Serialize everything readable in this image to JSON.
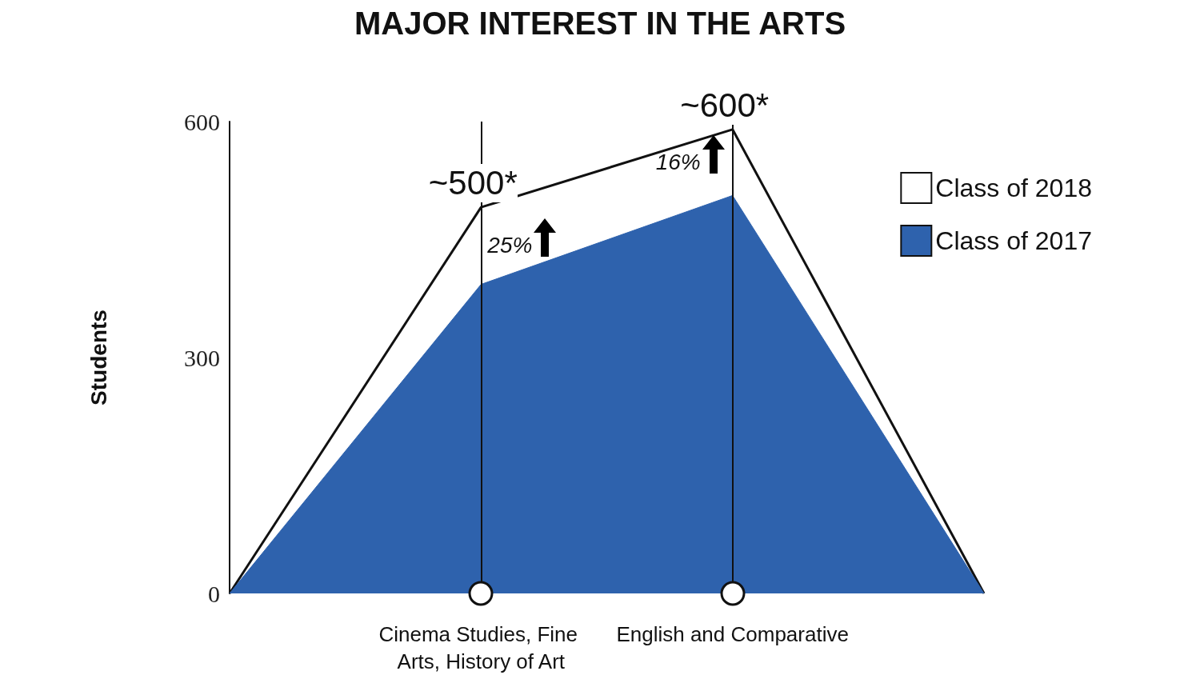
{
  "chart_data": {
    "type": "area",
    "title": "MAJOR INTEREST IN THE ARTS",
    "ylabel": "Students",
    "categories": [
      null,
      "Cinema Studies, Fine Arts, History of Art",
      "English and Comparative",
      null
    ],
    "series": [
      {
        "name": "Class of 2018",
        "color": "#ffffff",
        "values": [
          0,
          491,
          590,
          0
        ]
      },
      {
        "name": "Class of 2017",
        "color": "#2e62ad",
        "values": [
          0,
          393,
          506,
          0
        ]
      }
    ],
    "ylim": [
      0,
      600
    ],
    "yticks": [
      0,
      300,
      600
    ],
    "grid": "x",
    "legend": "right",
    "marker": "none",
    "line_style": "solid",
    "annotations": [
      {
        "text": "~500*",
        "x": "Cinema Studies, Fine Arts, History of Art",
        "y": 491
      },
      {
        "text": "~600*",
        "x": "English and Comparative",
        "y": 590
      },
      "25%",
      "16%"
    ]
  }
}
